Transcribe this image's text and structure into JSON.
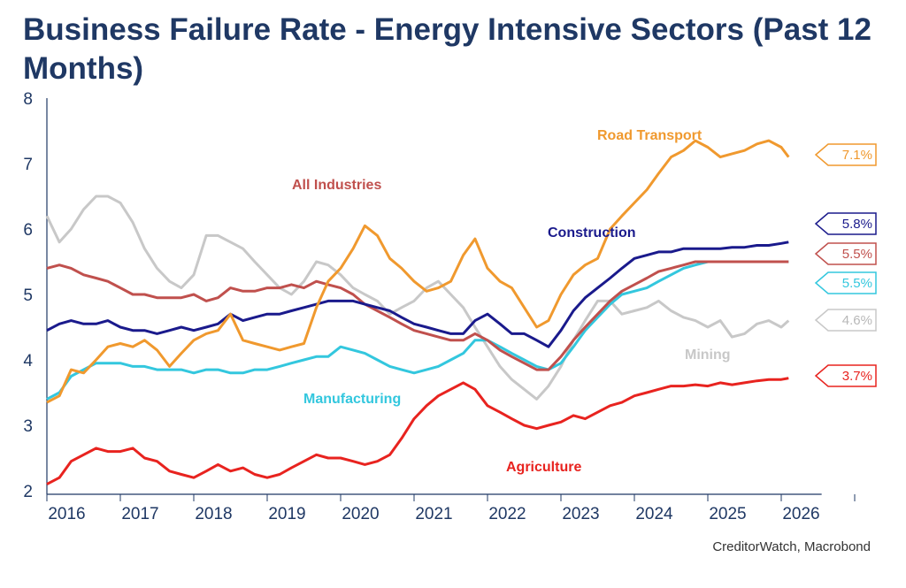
{
  "title": "Business Failure Rate - Energy Intensive Sectors (Past 12 Months)",
  "source": "CreditorWatch, Macrobond",
  "chart_data": {
    "type": "line",
    "title": "Business Failure Rate - Energy Intensive Sectors (Past 12 Months)",
    "xlabel": "",
    "ylabel": "",
    "ylim": [
      2,
      8
    ],
    "yticks": [
      2,
      3,
      4,
      5,
      6,
      7,
      8
    ],
    "xlim": [
      2016.0,
      2026.5
    ],
    "xticks": [
      "2016",
      "2017",
      "2018",
      "2019",
      "2020",
      "2021",
      "2022",
      "2023",
      "2024",
      "2025",
      "2026"
    ],
    "grid": false,
    "legend": "inline labels and end-value tags on right",
    "x": [
      2016.0,
      2016.17,
      2016.33,
      2016.5,
      2016.67,
      2016.83,
      2017.0,
      2017.17,
      2017.33,
      2017.5,
      2017.67,
      2017.83,
      2018.0,
      2018.17,
      2018.33,
      2018.5,
      2018.67,
      2018.83,
      2019.0,
      2019.17,
      2019.33,
      2019.5,
      2019.67,
      2019.83,
      2020.0,
      2020.17,
      2020.33,
      2020.5,
      2020.67,
      2020.83,
      2021.0,
      2021.17,
      2021.33,
      2021.5,
      2021.67,
      2021.83,
      2022.0,
      2022.17,
      2022.33,
      2022.5,
      2022.67,
      2022.83,
      2023.0,
      2023.17,
      2023.33,
      2023.5,
      2023.67,
      2023.83,
      2024.0,
      2024.17,
      2024.33,
      2024.5,
      2024.67,
      2024.83,
      2025.0,
      2025.17,
      2025.33,
      2025.5,
      2025.67,
      2025.83,
      2026.0,
      2026.1
    ],
    "series": [
      {
        "name": "Road Transport",
        "color": "#f0992e",
        "end_label": "7.1%",
        "values": [
          3.35,
          3.45,
          3.85,
          3.8,
          4.0,
          4.2,
          4.25,
          4.2,
          4.3,
          4.15,
          3.9,
          4.1,
          4.3,
          4.4,
          4.45,
          4.7,
          4.3,
          4.25,
          4.2,
          4.15,
          4.2,
          4.25,
          4.8,
          5.2,
          5.4,
          5.7,
          6.05,
          5.9,
          5.55,
          5.4,
          5.2,
          5.05,
          5.1,
          5.2,
          5.6,
          5.85,
          5.4,
          5.2,
          5.1,
          4.8,
          4.5,
          4.6,
          5.0,
          5.3,
          5.45,
          5.55,
          6.0,
          6.2,
          6.4,
          6.6,
          6.85,
          7.1,
          7.2,
          7.35,
          7.25,
          7.1,
          7.15,
          7.2,
          7.3,
          7.35,
          7.25,
          7.1
        ]
      },
      {
        "name": "All Industries",
        "color": "#c0504d",
        "end_label": "5.5%",
        "values": [
          5.4,
          5.45,
          5.4,
          5.3,
          5.25,
          5.2,
          5.1,
          5.0,
          5.0,
          4.95,
          4.95,
          4.95,
          5.0,
          4.9,
          4.95,
          5.1,
          5.05,
          5.05,
          5.1,
          5.1,
          5.15,
          5.1,
          5.2,
          5.15,
          5.1,
          5.0,
          4.85,
          4.75,
          4.65,
          4.55,
          4.45,
          4.4,
          4.35,
          4.3,
          4.3,
          4.4,
          4.3,
          4.15,
          4.05,
          3.95,
          3.85,
          3.85,
          4.05,
          4.3,
          4.5,
          4.7,
          4.9,
          5.05,
          5.15,
          5.25,
          5.35,
          5.4,
          5.45,
          5.5,
          5.5,
          5.5,
          5.5,
          5.5,
          5.5,
          5.5,
          5.5,
          5.5
        ]
      },
      {
        "name": "Construction",
        "color": "#1a1a8c",
        "end_label": "5.8%",
        "values": [
          4.45,
          4.55,
          4.6,
          4.55,
          4.55,
          4.6,
          4.5,
          4.45,
          4.45,
          4.4,
          4.45,
          4.5,
          4.45,
          4.5,
          4.55,
          4.7,
          4.6,
          4.65,
          4.7,
          4.7,
          4.75,
          4.8,
          4.85,
          4.9,
          4.9,
          4.9,
          4.85,
          4.8,
          4.75,
          4.65,
          4.55,
          4.5,
          4.45,
          4.4,
          4.4,
          4.6,
          4.7,
          4.55,
          4.4,
          4.4,
          4.3,
          4.2,
          4.45,
          4.75,
          4.95,
          5.1,
          5.25,
          5.4,
          5.55,
          5.6,
          5.65,
          5.65,
          5.7,
          5.7,
          5.7,
          5.7,
          5.72,
          5.72,
          5.75,
          5.75,
          5.78,
          5.8
        ]
      },
      {
        "name": "Manufacturing",
        "color": "#33c7de",
        "end_label": "5.5%",
        "values": [
          3.4,
          3.5,
          3.75,
          3.85,
          3.95,
          3.95,
          3.95,
          3.9,
          3.9,
          3.85,
          3.85,
          3.85,
          3.8,
          3.85,
          3.85,
          3.8,
          3.8,
          3.85,
          3.85,
          3.9,
          3.95,
          4.0,
          4.05,
          4.05,
          4.2,
          4.15,
          4.1,
          4.0,
          3.9,
          3.85,
          3.8,
          3.85,
          3.9,
          4.0,
          4.1,
          4.3,
          4.3,
          4.2,
          4.1,
          4.0,
          3.9,
          3.85,
          3.95,
          4.2,
          4.45,
          4.65,
          4.85,
          5.0,
          5.05,
          5.1,
          5.2,
          5.3,
          5.4,
          5.45,
          5.5,
          5.5,
          5.5,
          5.5,
          5.5,
          5.5,
          5.5,
          5.5
        ]
      },
      {
        "name": "Mining",
        "color": "#c8c8c8",
        "end_label": "4.6%",
        "values": [
          6.2,
          5.8,
          6.0,
          6.3,
          6.5,
          6.5,
          6.4,
          6.1,
          5.7,
          5.4,
          5.2,
          5.1,
          5.3,
          5.9,
          5.9,
          5.8,
          5.7,
          5.5,
          5.3,
          5.1,
          5.0,
          5.2,
          5.5,
          5.45,
          5.3,
          5.1,
          5.0,
          4.9,
          4.7,
          4.8,
          4.9,
          5.1,
          5.2,
          5.0,
          4.8,
          4.5,
          4.2,
          3.9,
          3.7,
          3.55,
          3.4,
          3.6,
          3.9,
          4.3,
          4.6,
          4.9,
          4.9,
          4.7,
          4.75,
          4.8,
          4.9,
          4.75,
          4.65,
          4.6,
          4.5,
          4.6,
          4.35,
          4.4,
          4.55,
          4.6,
          4.5,
          4.6
        ]
      },
      {
        "name": "Agriculture",
        "color": "#e8231f",
        "end_label": "3.7%",
        "values": [
          2.1,
          2.2,
          2.45,
          2.55,
          2.65,
          2.6,
          2.6,
          2.65,
          2.5,
          2.45,
          2.3,
          2.25,
          2.2,
          2.3,
          2.4,
          2.3,
          2.35,
          2.25,
          2.2,
          2.25,
          2.35,
          2.45,
          2.55,
          2.5,
          2.5,
          2.45,
          2.4,
          2.45,
          2.55,
          2.8,
          3.1,
          3.3,
          3.45,
          3.55,
          3.65,
          3.55,
          3.3,
          3.2,
          3.1,
          3.0,
          2.95,
          3.0,
          3.05,
          3.15,
          3.1,
          3.2,
          3.3,
          3.35,
          3.45,
          3.5,
          3.55,
          3.6,
          3.6,
          3.62,
          3.6,
          3.65,
          3.62,
          3.65,
          3.68,
          3.7,
          3.7,
          3.72
        ]
      }
    ],
    "annotations": [
      {
        "text": "Road Transport",
        "series": "Road Transport"
      },
      {
        "text": "All Industries",
        "series": "All Industries"
      },
      {
        "text": "Construction",
        "series": "Construction"
      },
      {
        "text": "Manufacturing",
        "series": "Manufacturing"
      },
      {
        "text": "Mining",
        "series": "Mining"
      },
      {
        "text": "Agriculture",
        "series": "Agriculture"
      }
    ]
  }
}
